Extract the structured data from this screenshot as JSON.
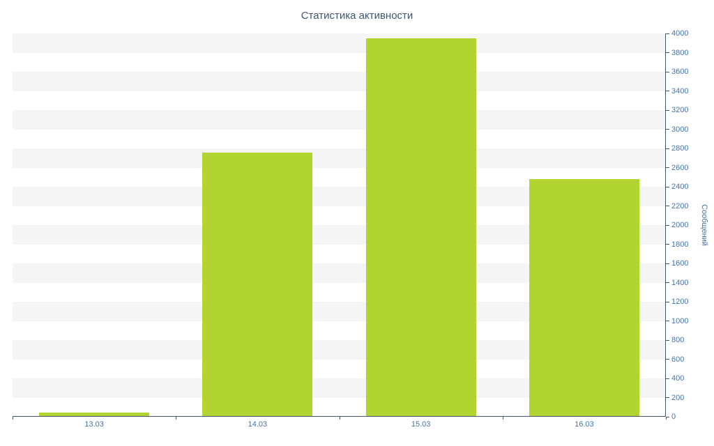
{
  "chart_data": {
    "type": "bar",
    "title": "Статистика активности",
    "categories": [
      "13.03",
      "14.03",
      "15.03",
      "16.03"
    ],
    "values": [
      40,
      2750,
      3940,
      2470
    ],
    "xlabel": "",
    "ylabel": "Сообщений",
    "ylim": [
      0,
      4000
    ],
    "ytick_step": 200,
    "legend": "none",
    "grid": "alternating horizontal bands",
    "colors": {
      "bar": "#b2d432",
      "axis": "#3e576f",
      "tick_label": "#4572a7",
      "title": "#3e576f",
      "stripe": "#f5f5f5",
      "background": "#ffffff"
    }
  }
}
